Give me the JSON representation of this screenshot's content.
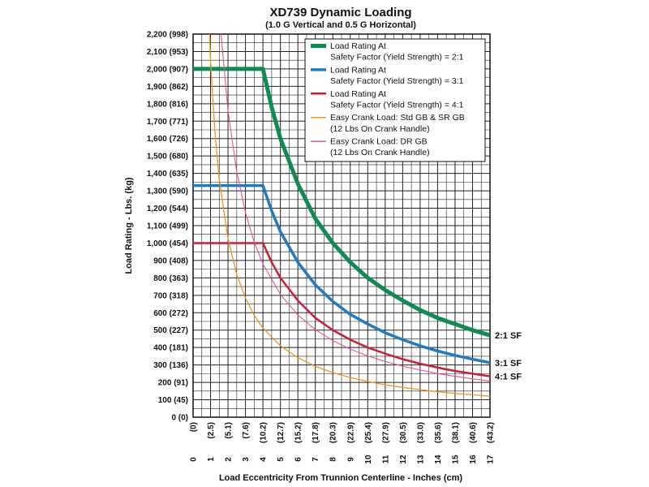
{
  "chart_data": {
    "type": "line",
    "title": "XD739 Dynamic Loading",
    "subtitle": "(1.0 G Vertical and 0.5 G Horizontal)",
    "xlabel": "Load Eccentricity From Trunnion Centerline - Inches (cm)",
    "ylabel": "Load Rating - Lbs. (kg)",
    "xlim": [
      0,
      17
    ],
    "ylim": [
      0,
      2200
    ],
    "grid": true,
    "legend_position": "top-right",
    "x_ticks": [
      {
        "value": 0,
        "label": "0",
        "cm": "(0)"
      },
      {
        "value": 1,
        "label": "1",
        "cm": "(2.5)"
      },
      {
        "value": 2,
        "label": "2",
        "cm": "(5.1)"
      },
      {
        "value": 3,
        "label": "3",
        "cm": "(7.6)"
      },
      {
        "value": 4,
        "label": "4",
        "cm": "(10.2)"
      },
      {
        "value": 5,
        "label": "5",
        "cm": "(12.7)"
      },
      {
        "value": 6,
        "label": "6",
        "cm": "(15.2)"
      },
      {
        "value": 7,
        "label": "7",
        "cm": "(17.8)"
      },
      {
        "value": 8,
        "label": "8",
        "cm": "(20.3)"
      },
      {
        "value": 9,
        "label": "9",
        "cm": "(22.9)"
      },
      {
        "value": 10,
        "label": "10",
        "cm": "(25.4)"
      },
      {
        "value": 11,
        "label": "11",
        "cm": "(27.9)"
      },
      {
        "value": 12,
        "label": "12",
        "cm": "(30.5)"
      },
      {
        "value": 13,
        "label": "13",
        "cm": "(33.0)"
      },
      {
        "value": 14,
        "label": "14",
        "cm": "(35.6)"
      },
      {
        "value": 15,
        "label": "15",
        "cm": "(38.1)"
      },
      {
        "value": 16,
        "label": "16",
        "cm": "(40.6)"
      },
      {
        "value": 17,
        "label": "17",
        "cm": "(43.2)"
      }
    ],
    "y_ticks": [
      {
        "value": 0,
        "label": "0 (0)"
      },
      {
        "value": 100,
        "label": "100 (45)"
      },
      {
        "value": 200,
        "label": "200 (91)"
      },
      {
        "value": 300,
        "label": "300 (136)"
      },
      {
        "value": 400,
        "label": "400 (181)"
      },
      {
        "value": 500,
        "label": "500 (227)"
      },
      {
        "value": 600,
        "label": "600 (272)"
      },
      {
        "value": 700,
        "label": "700 (318)"
      },
      {
        "value": 800,
        "label": "800 (363)"
      },
      {
        "value": 900,
        "label": "900 (408)"
      },
      {
        "value": 1000,
        "label": "1,000 (454)"
      },
      {
        "value": 1100,
        "label": "1,100 (499)"
      },
      {
        "value": 1200,
        "label": "1,200 (544)"
      },
      {
        "value": 1300,
        "label": "1,300 (590)"
      },
      {
        "value": 1400,
        "label": "1,400 (635)"
      },
      {
        "value": 1500,
        "label": "1,500 (680)"
      },
      {
        "value": 1600,
        "label": "1,600 (726)"
      },
      {
        "value": 1700,
        "label": "1,700 (771)"
      },
      {
        "value": 1800,
        "label": "1,800 (816)"
      },
      {
        "value": 1900,
        "label": "1,900 (862)"
      },
      {
        "value": 2000,
        "label": "2,000 (907)"
      },
      {
        "value": 2100,
        "label": "2,100 (953)"
      },
      {
        "value": 2200,
        "label": "2,200 (998)"
      }
    ],
    "series": [
      {
        "name": "Load Rating At Safety Factor (Yield Strength) = 2:1",
        "legend_lines": [
          "Load Rating At",
          "Safety Factor (Yield Strength) = 2:1"
        ],
        "end_label": "2:1 SF",
        "color": "#0e8a55",
        "x": [
          0,
          4,
          4.5,
          5,
          6,
          7,
          8,
          9,
          10,
          11,
          12,
          13,
          14,
          15,
          16,
          17
        ],
        "y": [
          2000,
          2000,
          1780,
          1600,
          1340,
          1140,
          1000,
          890,
          800,
          730,
          670,
          615,
          570,
          535,
          500,
          470
        ]
      },
      {
        "name": "Load Rating At Safety Factor (Yield Strength) = 3:1",
        "legend_lines": [
          "Load Rating At",
          "Safety Factor (Yield Strength) = 3:1"
        ],
        "end_label": "3:1 SF",
        "color": "#1f7bbf",
        "x": [
          0,
          4,
          4.5,
          5,
          6,
          7,
          8,
          9,
          10,
          11,
          12,
          13,
          14,
          15,
          16,
          17
        ],
        "y": [
          1330,
          1330,
          1185,
          1065,
          890,
          760,
          665,
          590,
          535,
          485,
          445,
          410,
          380,
          355,
          333,
          313
        ]
      },
      {
        "name": "Load Rating At Safety Factor (Yield Strength) = 4:1",
        "legend_lines": [
          "Load Rating At",
          "Safety Factor (Yield Strength) = 4:1"
        ],
        "end_label": "4:1 SF",
        "color": "#c81e3c",
        "x": [
          0,
          4,
          4.5,
          5,
          6,
          7,
          8,
          9,
          10,
          11,
          12,
          13,
          14,
          15,
          16,
          17
        ],
        "y": [
          1000,
          1000,
          890,
          800,
          670,
          570,
          500,
          445,
          400,
          365,
          333,
          307,
          285,
          265,
          250,
          235
        ]
      },
      {
        "name": "Easy Crank Load: Std GB & SR GB (12 Lbs On Crank Handle)",
        "legend_lines": [
          "Easy Crank Load: Std GB & SR GB",
          "(12 Lbs On Crank Handle)"
        ],
        "color": "#e8961e",
        "x": [
          0.95,
          1,
          1.25,
          1.5,
          2,
          2.5,
          3,
          3.5,
          4,
          5,
          6,
          7,
          8,
          9,
          10,
          11,
          12,
          13,
          14,
          15,
          16,
          17
        ],
        "y": [
          2200,
          2040,
          1640,
          1365,
          1025,
          820,
          685,
          585,
          512,
          410,
          342,
          292,
          256,
          228,
          205,
          186,
          171,
          158,
          146,
          137,
          128,
          121
        ]
      },
      {
        "name": "Easy Crank Load: DR GB (12 Lbs On Crank Handle)",
        "legend_lines": [
          "Easy Crank Load: DR GB",
          "(12 Lbs On Crank Handle)"
        ],
        "color": "#e8509a",
        "x": [
          1.6,
          2,
          2.5,
          3,
          3.5,
          4,
          5,
          6,
          7,
          8,
          9,
          10,
          11,
          12,
          13,
          14,
          15,
          16,
          17
        ],
        "y": [
          2200,
          1760,
          1410,
          1175,
          1005,
          880,
          705,
          587,
          503,
          440,
          391,
          352,
          320,
          293,
          271,
          251,
          235,
          220,
          207
        ]
      }
    ]
  }
}
